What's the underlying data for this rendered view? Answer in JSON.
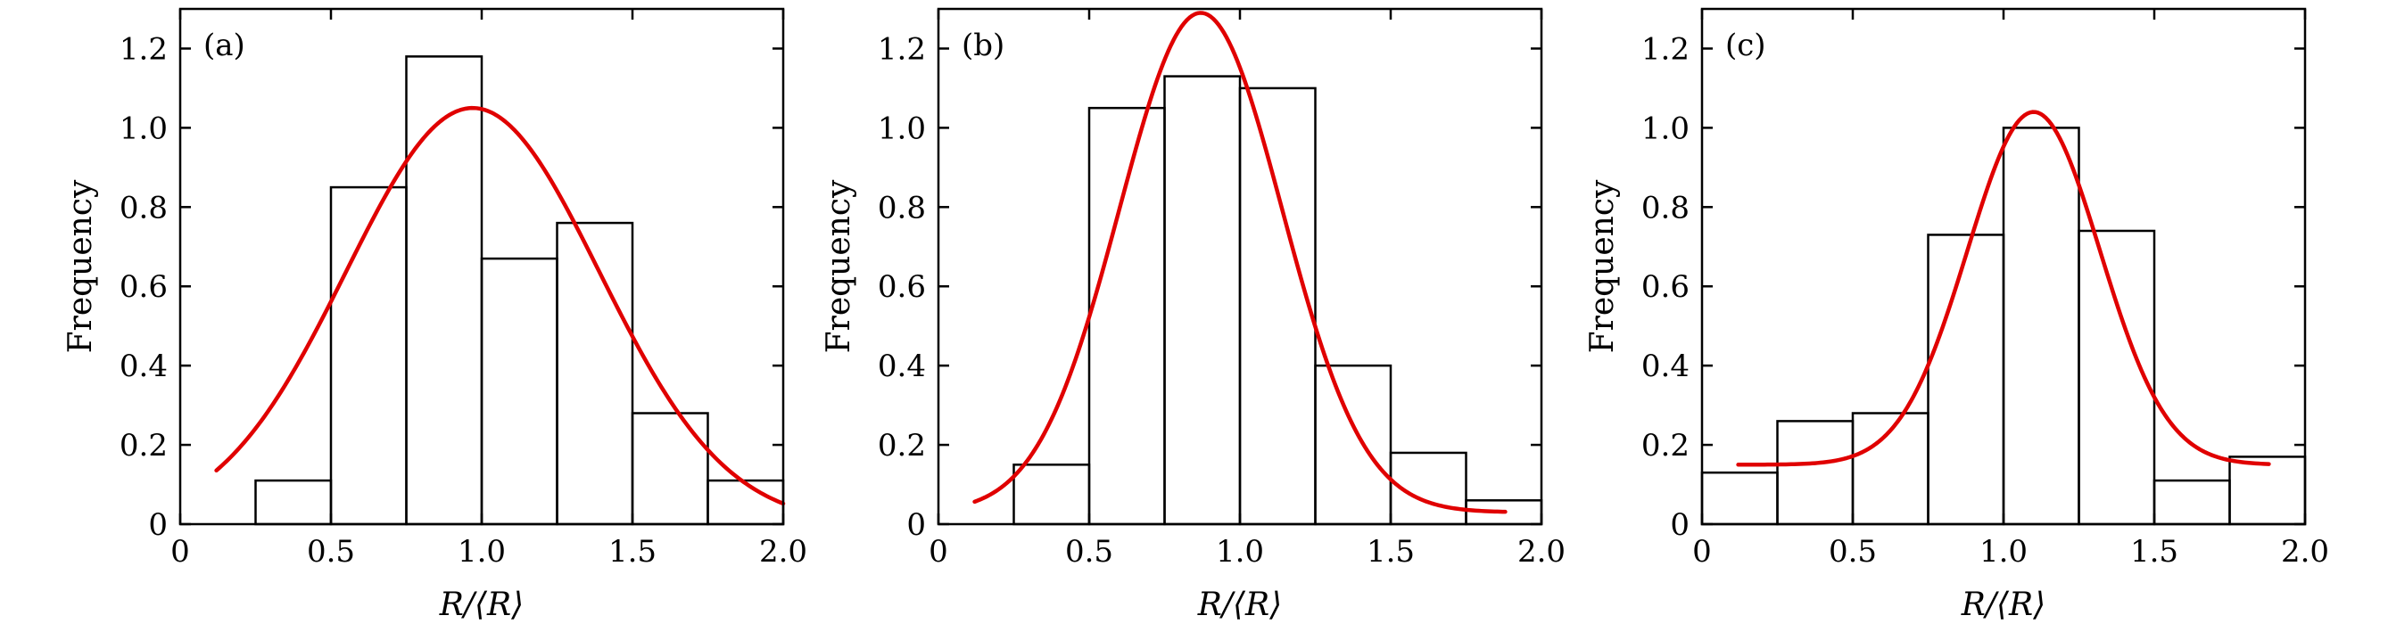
{
  "chart_data": [
    {
      "type": "bar",
      "panel_label": "(a)",
      "xlabel": "R/⟨R⟩",
      "ylabel": "Frequency",
      "xlim": [
        0,
        2.0
      ],
      "ylim": [
        0,
        1.3
      ],
      "xticks": [
        "0",
        "0.5",
        "1.0",
        "1.5",
        "2.0"
      ],
      "yticks": [
        "0",
        "0.2",
        "0.4",
        "0.6",
        "0.8",
        "1.0",
        "1.2"
      ],
      "bin_edges": [
        0,
        0.25,
        0.5,
        0.75,
        1.0,
        1.25,
        1.5,
        1.75,
        2.0
      ],
      "values": [
        0,
        0.11,
        0.85,
        1.18,
        0.67,
        0.76,
        0.28,
        0.11
      ],
      "fit": {
        "type": "gaussian",
        "amplitude": 1.05,
        "mean": 0.97,
        "sigma": 0.42,
        "offset": 0.0,
        "x_range": [
          0.12,
          2.0
        ],
        "color": "#e00000"
      },
      "grid": false
    },
    {
      "type": "bar",
      "panel_label": "(b)",
      "xlabel": "R/⟨R⟩",
      "ylabel": "Frequency",
      "xlim": [
        0,
        2.0
      ],
      "ylim": [
        0,
        1.3
      ],
      "xticks": [
        "0",
        "0.5",
        "1.0",
        "1.5",
        "2.0"
      ],
      "yticks": [
        "0",
        "0.2",
        "0.4",
        "0.6",
        "0.8",
        "1.0",
        "1.2"
      ],
      "bin_edges": [
        0,
        0.25,
        0.5,
        0.75,
        1.0,
        1.25,
        1.5,
        1.75,
        2.0
      ],
      "values": [
        0,
        0.15,
        1.05,
        1.13,
        1.1,
        0.4,
        0.18,
        0.06
      ],
      "fit": {
        "type": "gaussian",
        "amplitude": 1.26,
        "mean": 0.87,
        "sigma": 0.27,
        "offset": 0.03,
        "x_range": [
          0.12,
          1.88
        ],
        "color": "#e00000"
      },
      "grid": false
    },
    {
      "type": "bar",
      "panel_label": "(c)",
      "xlabel": "R/⟨R⟩",
      "ylabel": "Frequency",
      "xlim": [
        0,
        2.0
      ],
      "ylim": [
        0,
        1.3
      ],
      "xticks": [
        "0",
        "0.5",
        "1.0",
        "1.5",
        "2.0"
      ],
      "yticks": [
        "0",
        "0.2",
        "0.4",
        "0.6",
        "0.8",
        "1.0",
        "1.2"
      ],
      "bin_edges": [
        0,
        0.25,
        0.5,
        0.75,
        1.0,
        1.25,
        1.5,
        1.75,
        2.0
      ],
      "values": [
        0.13,
        0.26,
        0.28,
        0.73,
        1.0,
        0.74,
        0.11,
        0.17
      ],
      "fit": {
        "type": "gaussian",
        "amplitude": 0.89,
        "mean": 1.1,
        "sigma": 0.22,
        "offset": 0.15,
        "x_range": [
          0.12,
          1.88
        ],
        "color": "#e00000"
      },
      "grid": false
    }
  ]
}
